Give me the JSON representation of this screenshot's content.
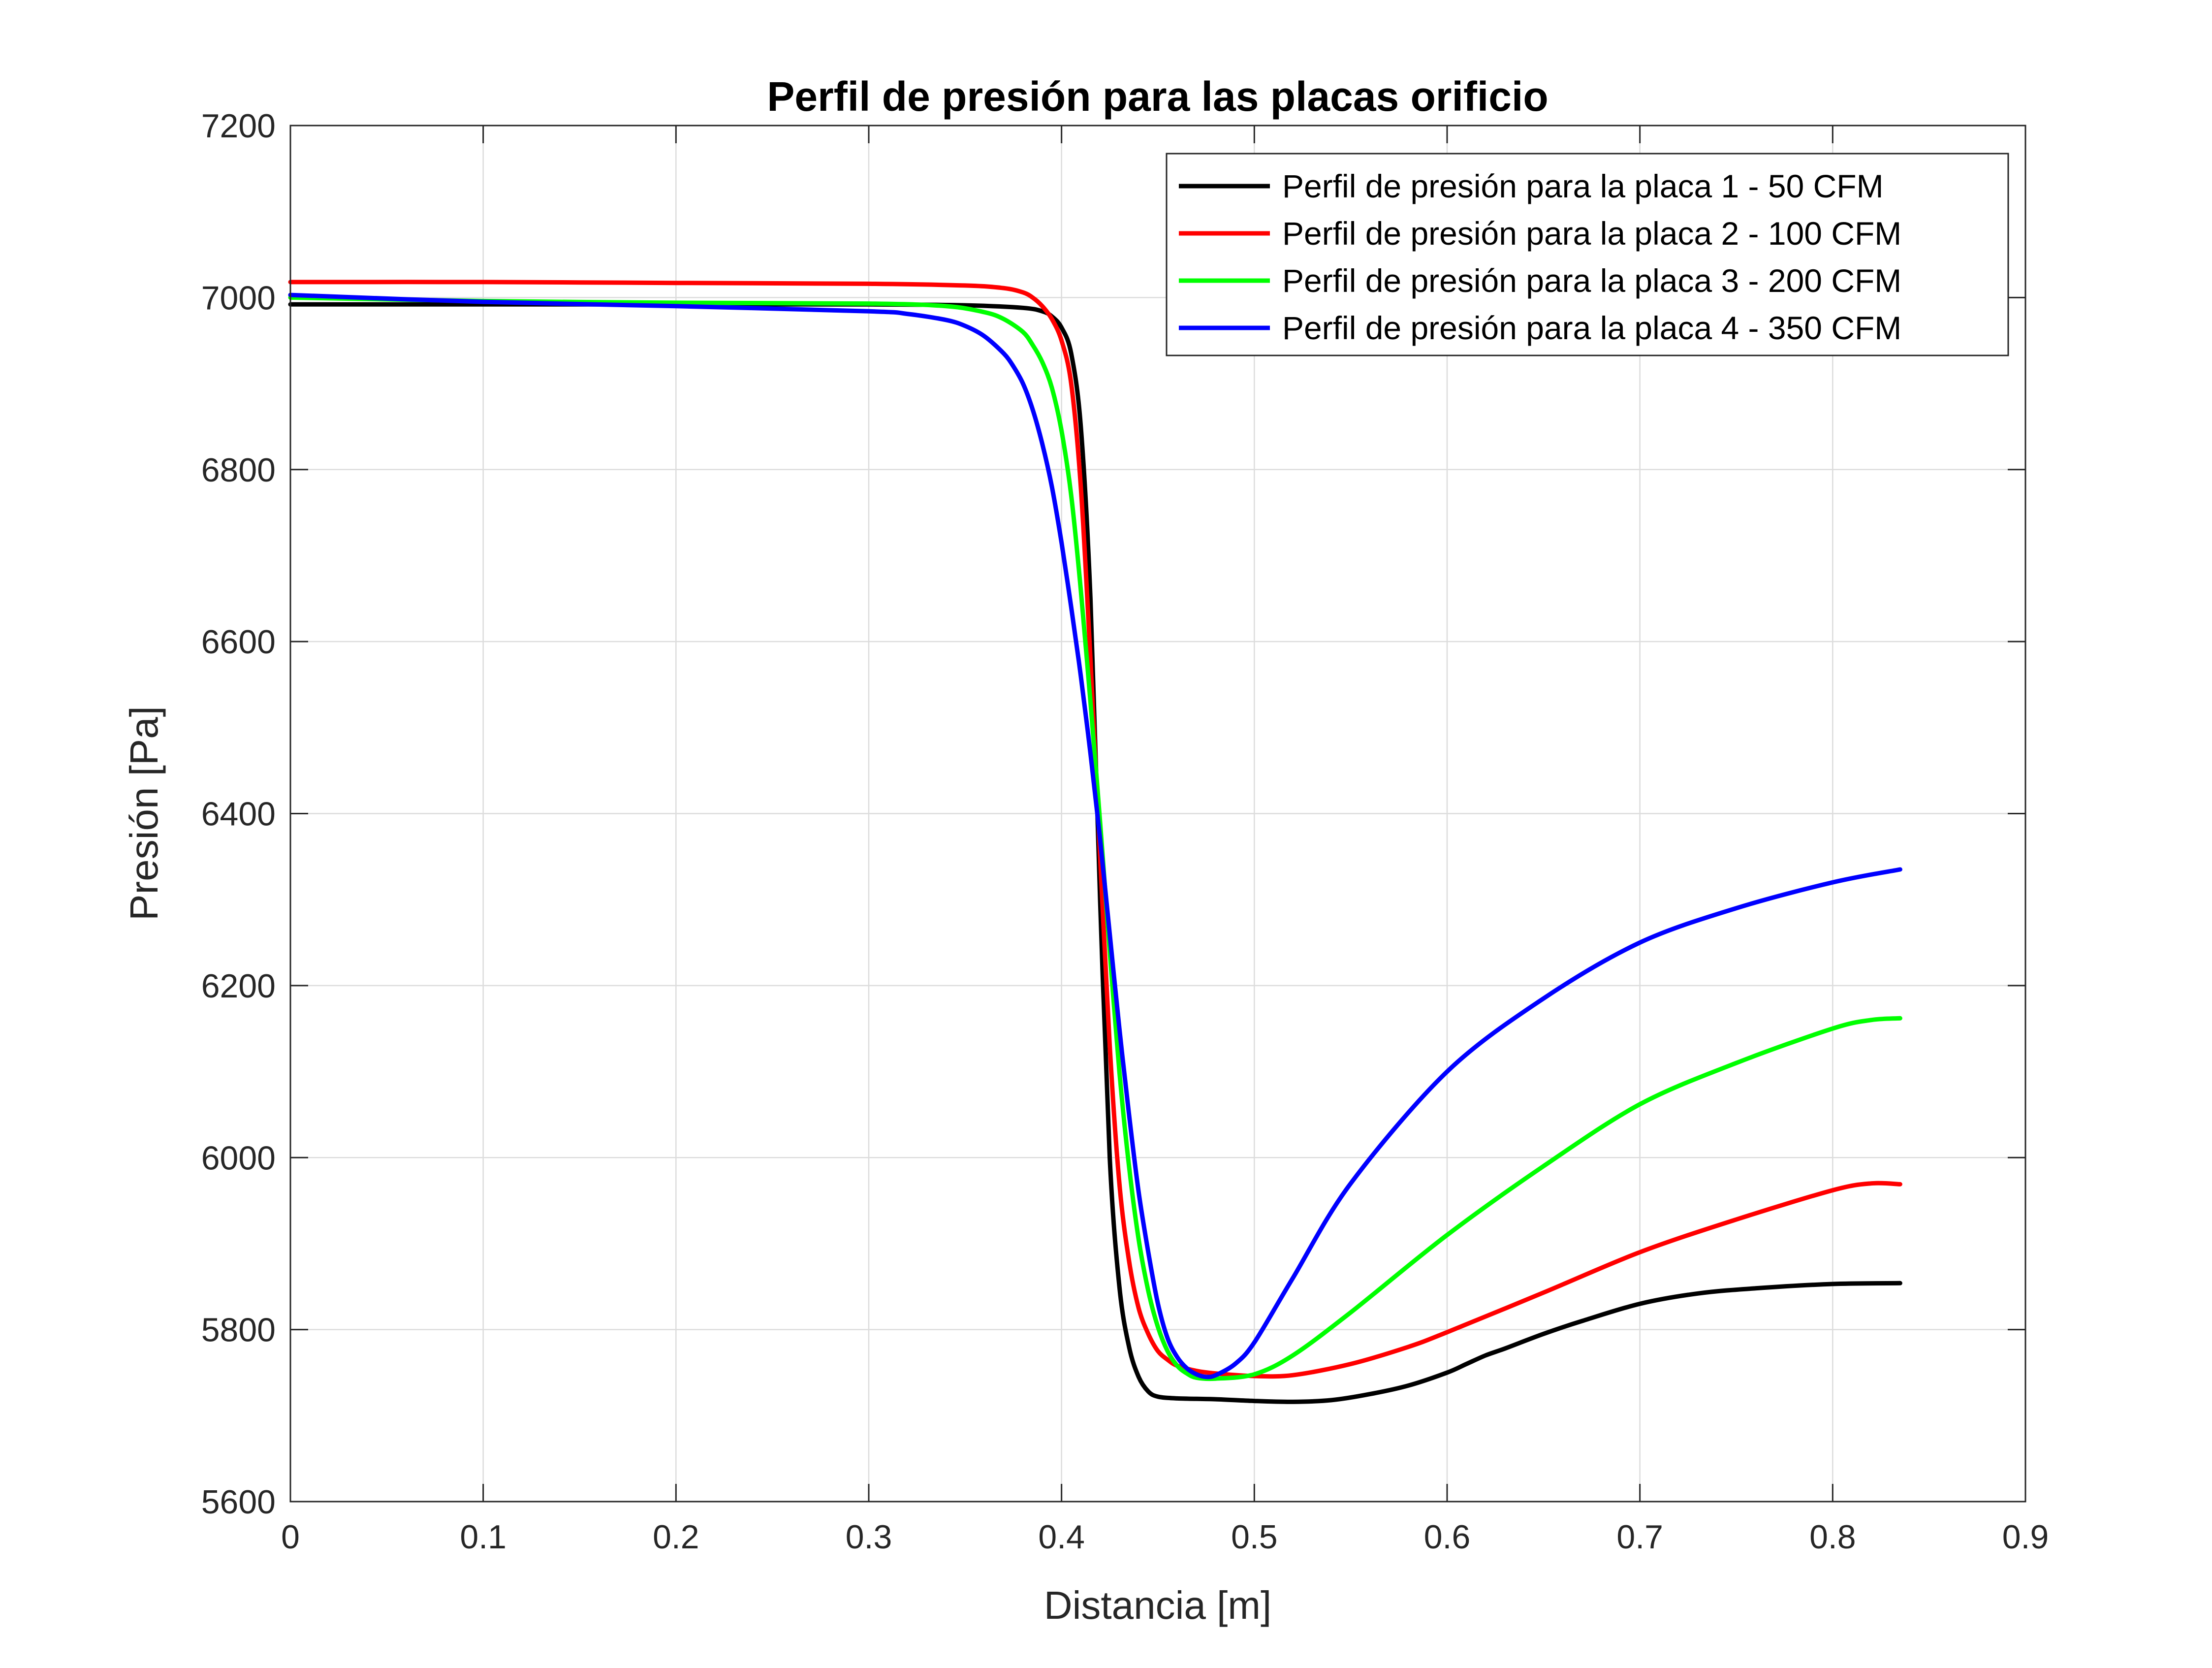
{
  "chart_data": {
    "type": "line",
    "title": "Perfil de presión para las placas orificio",
    "xlabel": "Distancia [m]",
    "ylabel": "Presión [Pa]",
    "xlim": [
      0,
      0.9
    ],
    "ylim": [
      5600,
      7200
    ],
    "xticks": [
      0,
      0.1,
      0.2,
      0.3,
      0.4,
      0.5,
      0.6,
      0.7,
      0.8,
      0.9
    ],
    "xtick_labels": [
      "0",
      "0.1",
      "0.2",
      "0.3",
      "0.4",
      "0.5",
      "0.6",
      "0.7",
      "0.8",
      "0.9"
    ],
    "yticks": [
      5600,
      5800,
      6000,
      6200,
      6400,
      6600,
      6800,
      7000,
      7200
    ],
    "ytick_labels": [
      "5600",
      "5800",
      "6000",
      "6200",
      "6400",
      "6600",
      "6800",
      "7000",
      "7200"
    ],
    "grid": true,
    "legend_position": "top-right",
    "series": [
      {
        "name": "Perfil de presión para la placa 1 - 50 CFM",
        "color": "#000000",
        "x": [
          0,
          0.1,
          0.2,
          0.3,
          0.35,
          0.38,
          0.39,
          0.395,
          0.4,
          0.405,
          0.41,
          0.415,
          0.42,
          0.425,
          0.43,
          0.435,
          0.44,
          0.445,
          0.45,
          0.46,
          0.48,
          0.5,
          0.52,
          0.54,
          0.56,
          0.58,
          0.6,
          0.61,
          0.62,
          0.63,
          0.65,
          0.67,
          0.7,
          0.73,
          0.76,
          0.8,
          0.835
        ],
        "y": [
          6992,
          6992,
          6992,
          6992,
          6991,
          6988,
          6984,
          6978,
          6965,
          6935,
          6850,
          6650,
          6300,
          6000,
          5850,
          5780,
          5745,
          5728,
          5722,
          5720,
          5719,
          5717,
          5716,
          5718,
          5725,
          5735,
          5750,
          5760,
          5770,
          5778,
          5795,
          5810,
          5830,
          5842,
          5848,
          5853,
          5854
        ]
      },
      {
        "name": "Perfil de presión para la placa 2 - 100 CFM",
        "color": "#ff0000",
        "x": [
          0,
          0.1,
          0.2,
          0.3,
          0.35,
          0.37,
          0.38,
          0.385,
          0.39,
          0.395,
          0.4,
          0.405,
          0.41,
          0.415,
          0.42,
          0.425,
          0.43,
          0.435,
          0.44,
          0.445,
          0.45,
          0.455,
          0.46,
          0.47,
          0.48,
          0.5,
          0.52,
          0.55,
          0.58,
          0.6,
          0.65,
          0.7,
          0.75,
          0.8,
          0.82,
          0.835
        ],
        "y": [
          7018,
          7018,
          7017,
          7016,
          7014,
          7011,
          7006,
          7000,
          6990,
          6975,
          6950,
          6900,
          6780,
          6580,
          6350,
          6130,
          5970,
          5880,
          5825,
          5795,
          5775,
          5765,
          5758,
          5752,
          5749,
          5746,
          5747,
          5760,
          5780,
          5797,
          5843,
          5890,
          5928,
          5962,
          5970,
          5969
        ]
      },
      {
        "name": "Perfil de presión para la placa 3 - 200 CFM",
        "color": "#00ff00",
        "x": [
          0,
          0.1,
          0.2,
          0.3,
          0.34,
          0.36,
          0.37,
          0.38,
          0.385,
          0.39,
          0.395,
          0.4,
          0.405,
          0.41,
          0.415,
          0.42,
          0.425,
          0.43,
          0.435,
          0.44,
          0.445,
          0.45,
          0.455,
          0.46,
          0.465,
          0.47,
          0.48,
          0.5,
          0.52,
          0.55,
          0.6,
          0.65,
          0.7,
          0.75,
          0.8,
          0.82,
          0.835
        ],
        "y": [
          7000,
          6996,
          6994,
          6993,
          6990,
          6983,
          6975,
          6960,
          6945,
          6925,
          6895,
          6845,
          6770,
          6660,
          6530,
          6390,
          6240,
          6100,
          5990,
          5905,
          5845,
          5803,
          5775,
          5758,
          5749,
          5744,
          5743,
          5748,
          5770,
          5820,
          5910,
          5990,
          6062,
          6110,
          6150,
          6160,
          6162
        ]
      },
      {
        "name": "Perfil de presión para la placa 4 - 350 CFM",
        "color": "#0000ff",
        "x": [
          0,
          0.1,
          0.2,
          0.3,
          0.32,
          0.34,
          0.35,
          0.36,
          0.37,
          0.375,
          0.38,
          0.385,
          0.39,
          0.395,
          0.4,
          0.405,
          0.41,
          0.415,
          0.42,
          0.425,
          0.43,
          0.435,
          0.44,
          0.445,
          0.45,
          0.455,
          0.46,
          0.465,
          0.47,
          0.475,
          0.48,
          0.49,
          0.5,
          0.52,
          0.55,
          0.6,
          0.65,
          0.7,
          0.75,
          0.8,
          0.835
        ],
        "y": [
          7003,
          6995,
          6990,
          6984,
          6981,
          6974,
          6967,
          6955,
          6935,
          6920,
          6900,
          6870,
          6830,
          6780,
          6715,
          6640,
          6560,
          6470,
          6370,
          6260,
          6150,
          6050,
          5960,
          5890,
          5830,
          5790,
          5768,
          5755,
          5748,
          5745,
          5747,
          5760,
          5785,
          5860,
          5970,
          6100,
          6185,
          6250,
          6290,
          6320,
          6335
        ]
      }
    ]
  }
}
